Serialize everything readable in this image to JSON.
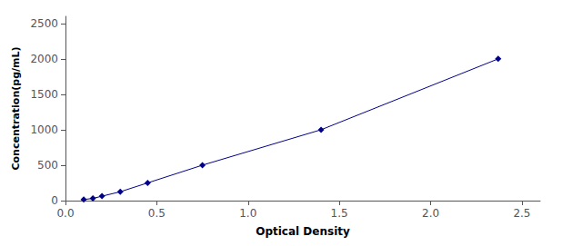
{
  "chart_data": {
    "type": "line",
    "x": [
      0.1,
      0.15,
      0.2,
      0.3,
      0.45,
      0.75,
      1.4,
      2.37
    ],
    "values": [
      15.6,
      31.2,
      62.5,
      125,
      250,
      500,
      1000,
      2000
    ],
    "color": "#00008B",
    "marker": "diamond",
    "line_style": "solid",
    "xlabel": "Optical Density",
    "ylabel": "Concentration(pg/mL)",
    "xlim": [
      0.0,
      2.6
    ],
    "ylim": [
      0,
      2600
    ],
    "xticks": [
      {
        "value": 0,
        "label": "0.0"
      },
      0.5,
      {
        "value": 1.0,
        "label": "1.0"
      },
      1.5,
      {
        "value": 2.0,
        "label": "2.0"
      },
      2.5
    ],
    "yticks": [
      0,
      500,
      1000,
      1500,
      2000,
      2500
    ],
    "grid": false
  }
}
